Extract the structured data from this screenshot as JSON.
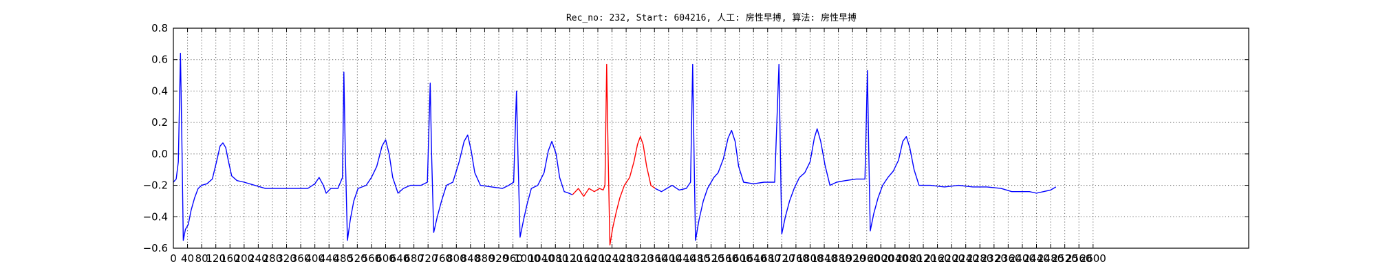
{
  "chart_data": {
    "type": "line",
    "title": "Rec_no: 232, Start: 604216, 人工: 房性早搏, 算法: 房性早搏",
    "xlabel": "",
    "ylabel": "",
    "xlim": [
      0,
      3040
    ],
    "ylim": [
      -0.6,
      0.8
    ],
    "grid": true,
    "x_ticks": [
      0,
      40,
      80,
      120,
      160,
      200,
      240,
      280,
      320,
      360,
      400,
      440,
      480,
      520,
      560,
      600,
      640,
      680,
      720,
      760,
      800,
      840,
      880,
      920,
      960,
      1000,
      1040,
      1080,
      1120,
      1160,
      1200,
      1240,
      1280,
      1320,
      1360,
      1400,
      1440,
      1480,
      1520,
      1560,
      1600,
      1640,
      1680,
      1720,
      1760,
      1800,
      1840,
      1880,
      1920,
      1960,
      2000,
      2040,
      2080,
      2120,
      2160,
      2200,
      2240,
      2280,
      2320,
      2360,
      2400,
      2440,
      2480,
      2520,
      2560,
      2600
    ],
    "y_ticks": [
      -0.6,
      -0.4,
      -0.2,
      0.0,
      0.2,
      0.4,
      0.6,
      0.8
    ],
    "y_tick_labels": [
      "−0.6",
      "−0.4",
      "−0.2",
      "0.0",
      "0.2",
      "0.4",
      "0.6",
      "0.8"
    ],
    "series": [
      {
        "color": "#0000ff",
        "points": [
          [
            0,
            -0.18
          ],
          [
            8,
            -0.16
          ],
          [
            14,
            -0.05
          ],
          [
            20,
            0.64
          ],
          [
            24,
            0.1
          ],
          [
            28,
            -0.55
          ],
          [
            34,
            -0.48
          ],
          [
            42,
            -0.45
          ],
          [
            50,
            -0.36
          ],
          [
            60,
            -0.28
          ],
          [
            70,
            -0.22
          ],
          [
            80,
            -0.2
          ],
          [
            95,
            -0.19
          ],
          [
            110,
            -0.16
          ],
          [
            122,
            -0.05
          ],
          [
            132,
            0.05
          ],
          [
            140,
            0.07
          ],
          [
            148,
            0.04
          ],
          [
            156,
            -0.05
          ],
          [
            165,
            -0.14
          ],
          [
            180,
            -0.17
          ],
          [
            200,
            -0.18
          ],
          [
            230,
            -0.2
          ],
          [
            260,
            -0.22
          ],
          [
            300,
            -0.22
          ],
          [
            340,
            -0.22
          ],
          [
            380,
            -0.22
          ],
          [
            400,
            -0.19
          ],
          [
            412,
            -0.15
          ],
          [
            424,
            -0.2
          ],
          [
            432,
            -0.25
          ],
          [
            445,
            -0.22
          ],
          [
            465,
            -0.22
          ],
          [
            478,
            -0.15
          ],
          [
            482,
            0.52
          ],
          [
            486,
            0.0
          ],
          [
            492,
            -0.55
          ],
          [
            500,
            -0.42
          ],
          [
            510,
            -0.3
          ],
          [
            522,
            -0.22
          ],
          [
            545,
            -0.2
          ],
          [
            560,
            -0.15
          ],
          [
            575,
            -0.08
          ],
          [
            590,
            0.05
          ],
          [
            600,
            0.09
          ],
          [
            610,
            0.0
          ],
          [
            620,
            -0.15
          ],
          [
            635,
            -0.25
          ],
          [
            650,
            -0.22
          ],
          [
            670,
            -0.2
          ],
          [
            700,
            -0.2
          ],
          [
            718,
            -0.18
          ],
          [
            726,
            0.45
          ],
          [
            730,
            0.0
          ],
          [
            736,
            -0.5
          ],
          [
            746,
            -0.4
          ],
          [
            758,
            -0.3
          ],
          [
            772,
            -0.2
          ],
          [
            790,
            -0.18
          ],
          [
            808,
            -0.05
          ],
          [
            822,
            0.08
          ],
          [
            832,
            0.12
          ],
          [
            842,
            0.02
          ],
          [
            852,
            -0.12
          ],
          [
            868,
            -0.2
          ],
          [
            900,
            -0.21
          ],
          [
            930,
            -0.22
          ],
          [
            948,
            -0.2
          ],
          [
            962,
            -0.18
          ],
          [
            970,
            0.4
          ],
          [
            974,
            0.0
          ],
          [
            980,
            -0.53
          ],
          [
            990,
            -0.42
          ],
          [
            1000,
            -0.32
          ],
          [
            1012,
            -0.22
          ],
          [
            1030,
            -0.2
          ],
          [
            1048,
            -0.12
          ],
          [
            1060,
            0.02
          ],
          [
            1070,
            0.08
          ],
          [
            1082,
            0.0
          ],
          [
            1092,
            -0.15
          ],
          [
            1105,
            -0.24
          ],
          [
            1118,
            -0.25
          ],
          [
            1128,
            -0.26
          ]
        ]
      },
      {
        "color": "#ff0000",
        "points": [
          [
            1128,
            -0.26
          ],
          [
            1145,
            -0.22
          ],
          [
            1160,
            -0.27
          ],
          [
            1175,
            -0.22
          ],
          [
            1190,
            -0.24
          ],
          [
            1205,
            -0.22
          ],
          [
            1215,
            -0.23
          ],
          [
            1220,
            -0.2
          ],
          [
            1225,
            0.57
          ],
          [
            1229,
            0.0
          ],
          [
            1234,
            -0.58
          ],
          [
            1242,
            -0.47
          ],
          [
            1252,
            -0.37
          ],
          [
            1262,
            -0.28
          ],
          [
            1275,
            -0.2
          ],
          [
            1290,
            -0.15
          ],
          [
            1302,
            -0.05
          ],
          [
            1312,
            0.06
          ],
          [
            1320,
            0.11
          ],
          [
            1328,
            0.06
          ],
          [
            1338,
            -0.08
          ],
          [
            1350,
            -0.2
          ],
          [
            1362,
            -0.22
          ]
        ]
      },
      {
        "color": "#0000ff",
        "points": [
          [
            1362,
            -0.22
          ],
          [
            1380,
            -0.24
          ],
          [
            1395,
            -0.22
          ],
          [
            1410,
            -0.2
          ],
          [
            1430,
            -0.23
          ],
          [
            1450,
            -0.22
          ],
          [
            1462,
            -0.18
          ],
          [
            1468,
            0.57
          ],
          [
            1472,
            0.0
          ],
          [
            1476,
            -0.55
          ],
          [
            1486,
            -0.42
          ],
          [
            1498,
            -0.3
          ],
          [
            1510,
            -0.22
          ],
          [
            1528,
            -0.15
          ],
          [
            1540,
            -0.12
          ],
          [
            1555,
            -0.03
          ],
          [
            1568,
            0.1
          ],
          [
            1578,
            0.15
          ],
          [
            1588,
            0.08
          ],
          [
            1598,
            -0.08
          ],
          [
            1612,
            -0.18
          ],
          [
            1640,
            -0.19
          ],
          [
            1670,
            -0.18
          ],
          [
            1700,
            -0.18
          ],
          [
            1712,
            0.57
          ],
          [
            1716,
            0.0
          ],
          [
            1720,
            -0.51
          ],
          [
            1730,
            -0.4
          ],
          [
            1742,
            -0.3
          ],
          [
            1755,
            -0.22
          ],
          [
            1770,
            -0.15
          ],
          [
            1785,
            -0.12
          ],
          [
            1800,
            -0.05
          ],
          [
            1812,
            0.1
          ],
          [
            1820,
            0.16
          ],
          [
            1830,
            0.08
          ],
          [
            1842,
            -0.07
          ],
          [
            1856,
            -0.2
          ],
          [
            1875,
            -0.18
          ],
          [
            1900,
            -0.17
          ],
          [
            1930,
            -0.16
          ],
          [
            1955,
            -0.16
          ],
          [
            1962,
            0.53
          ],
          [
            1966,
            0.0
          ],
          [
            1970,
            -0.49
          ],
          [
            1980,
            -0.38
          ],
          [
            1992,
            -0.28
          ],
          [
            2005,
            -0.2
          ],
          [
            2020,
            -0.15
          ],
          [
            2035,
            -0.11
          ],
          [
            2050,
            -0.04
          ],
          [
            2062,
            0.08
          ],
          [
            2072,
            0.11
          ],
          [
            2082,
            0.04
          ],
          [
            2094,
            -0.1
          ],
          [
            2108,
            -0.2
          ],
          [
            2140,
            -0.2
          ],
          [
            2180,
            -0.21
          ],
          [
            2220,
            -0.2
          ],
          [
            2260,
            -0.21
          ],
          [
            2300,
            -0.21
          ],
          [
            2340,
            -0.22
          ],
          [
            2370,
            -0.24
          ],
          [
            2400,
            -0.24
          ],
          [
            2420,
            -0.24
          ],
          [
            2440,
            -0.25
          ],
          [
            2460,
            -0.24
          ],
          [
            2480,
            -0.23
          ],
          [
            2495,
            -0.21
          ]
        ]
      }
    ]
  }
}
